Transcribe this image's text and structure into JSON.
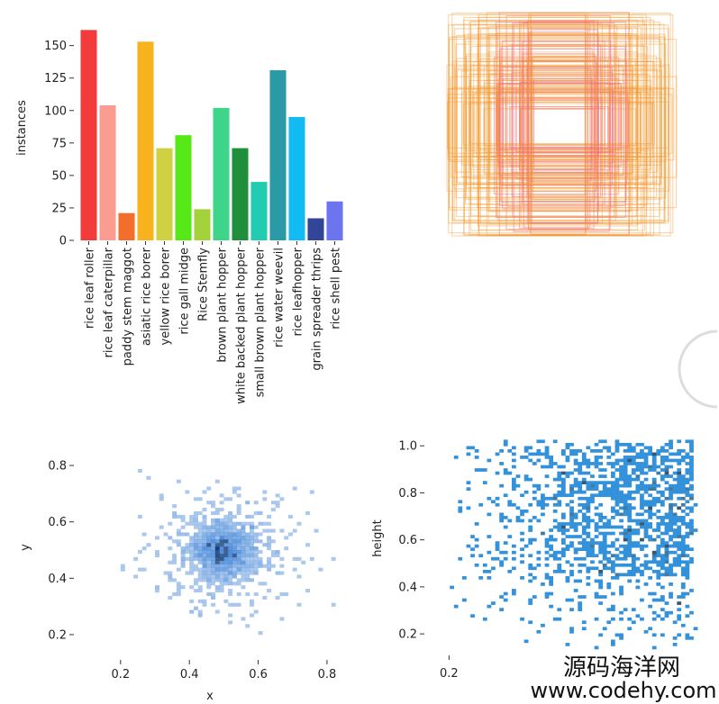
{
  "watermark": {
    "line1": "源码海洋网",
    "line2": "www.codehy.com"
  },
  "chart_data": [
    {
      "type": "bar",
      "ylabel": "instances",
      "ylim": [
        0,
        170
      ],
      "yticks": [
        0,
        25,
        50,
        75,
        100,
        125,
        150
      ],
      "categories": [
        "rice leaf roller",
        "rice leaf caterpillar",
        "paddy stem maggot",
        "asiatic rice borer",
        "yellow rice borer",
        "rice gall midge",
        "Rice Stemfly",
        "brown plant hopper",
        "white backed plant hopper",
        "small brown plant hopper",
        "rice water weevil",
        "rice leafhopper",
        "grain spreader thrips",
        "rice shell pest"
      ],
      "values": [
        162,
        104,
        21,
        153,
        71,
        81,
        24,
        102,
        71,
        45,
        131,
        95,
        17,
        30
      ],
      "colors": [
        "#f23b3b",
        "#fa9c8f",
        "#f36d2b",
        "#f7b21d",
        "#cfd143",
        "#57e817",
        "#a3d23a",
        "#3ed58a",
        "#1f8f3b",
        "#22ccb1",
        "#2a9aa6",
        "#12bbf2",
        "#334597",
        "#6d74f0"
      ]
    },
    {
      "type": "box-overlay",
      "description_color_edge": "#f29a2e",
      "inner_color_edge": "#f06c78"
    },
    {
      "type": "heatmap",
      "xlabel": "x",
      "ylabel": "y",
      "xticks": [
        "0.2",
        "0.4",
        "0.6",
        "0.8"
      ],
      "yticks": [
        "0.2",
        "0.4",
        "0.6",
        "0.8"
      ],
      "xlim": [
        0.08,
        0.85
      ],
      "ylim": [
        0.12,
        0.88
      ],
      "center": [
        0.5,
        0.5
      ],
      "color": "#1f6fd0"
    },
    {
      "type": "heatmap",
      "xlabel": "",
      "ylabel": "height",
      "xticks": [
        "0.2"
      ],
      "yticks": [
        "0.2",
        "0.4",
        "0.6",
        "0.8",
        "1.0"
      ],
      "xlim": [
        0.14,
        1.0
      ],
      "ylim": [
        0.12,
        1.02
      ],
      "color": "#1e86d6"
    }
  ]
}
